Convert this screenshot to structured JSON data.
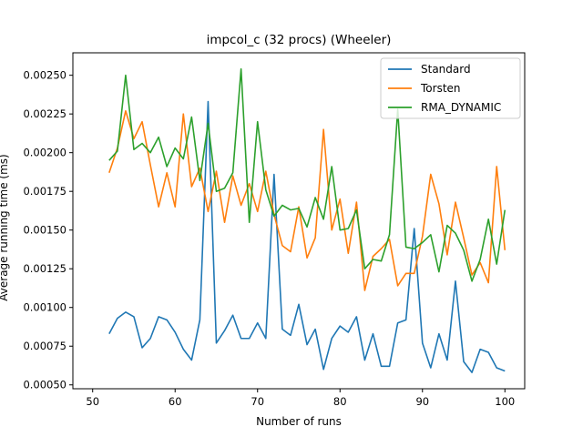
{
  "chart_data": {
    "type": "line",
    "title": "impcol_c (32 procs) (Wheeler)",
    "xlabel": "Number of runs",
    "ylabel": "Average running time (ms)",
    "xlim": [
      47.6,
      102.4
    ],
    "ylim": [
      0.000475,
      0.002645
    ],
    "xticks": [
      50,
      60,
      70,
      80,
      90,
      100
    ],
    "yticks": [
      0.0005,
      0.00075,
      0.001,
      0.00125,
      0.0015,
      0.00175,
      0.002,
      0.00225,
      0.0025
    ],
    "ytick_labels": [
      "0.00050",
      "0.00075",
      "0.00100",
      "0.00125",
      "0.00150",
      "0.00175",
      "0.00200",
      "0.00225",
      "0.00250"
    ],
    "xtick_labels": [
      "50",
      "60",
      "70",
      "80",
      "90",
      "100"
    ],
    "grid": false,
    "legend_position": "top-right",
    "x": [
      52,
      53,
      54,
      55,
      56,
      57,
      58,
      59,
      60,
      61,
      62,
      63,
      64,
      65,
      66,
      67,
      68,
      69,
      70,
      71,
      72,
      73,
      74,
      75,
      76,
      77,
      78,
      79,
      80,
      81,
      82,
      83,
      84,
      85,
      86,
      87,
      88,
      89,
      90,
      91,
      92,
      93,
      94,
      95,
      96,
      97,
      98,
      99,
      100
    ],
    "series": [
      {
        "name": "Standard",
        "color": "#1f77b4",
        "values": [
          0.00083,
          0.00093,
          0.00097,
          0.00094,
          0.00074,
          0.0008,
          0.00094,
          0.00092,
          0.00084,
          0.00073,
          0.00066,
          0.00092,
          0.00233,
          0.00077,
          0.00085,
          0.00095,
          0.0008,
          0.0008,
          0.0009,
          0.0008,
          0.00186,
          0.00086,
          0.00082,
          0.00102,
          0.00076,
          0.00086,
          0.0006,
          0.0008,
          0.00088,
          0.00084,
          0.00094,
          0.00066,
          0.00083,
          0.00062,
          0.00062,
          0.0009,
          0.00092,
          0.00151,
          0.00077,
          0.00061,
          0.00083,
          0.00066,
          0.00117,
          0.00065,
          0.00058,
          0.00073,
          0.00071,
          0.00061,
          0.00059
        ]
      },
      {
        "name": "Torsten",
        "color": "#ff7f0e",
        "values": [
          0.00187,
          0.00203,
          0.00227,
          0.00209,
          0.0022,
          0.00192,
          0.00165,
          0.00187,
          0.00165,
          0.00225,
          0.00178,
          0.0019,
          0.00162,
          0.00188,
          0.00155,
          0.00185,
          0.00166,
          0.0018,
          0.00162,
          0.00188,
          0.0016,
          0.0014,
          0.00136,
          0.00165,
          0.00132,
          0.00145,
          0.00215,
          0.0015,
          0.0017,
          0.00135,
          0.00168,
          0.00111,
          0.00133,
          0.00138,
          0.00144,
          0.00114,
          0.00122,
          0.00122,
          0.00146,
          0.00186,
          0.00167,
          0.00134,
          0.00168,
          0.00145,
          0.00121,
          0.00129,
          0.00116,
          0.00191,
          0.00137
        ]
      },
      {
        "name": "RMA_DYNAMIC",
        "color": "#2ca02c",
        "values": [
          0.00195,
          0.00201,
          0.0025,
          0.00202,
          0.00206,
          0.002,
          0.0021,
          0.00191,
          0.00203,
          0.00196,
          0.00223,
          0.00182,
          0.00219,
          0.00175,
          0.00177,
          0.00187,
          0.00254,
          0.00155,
          0.0022,
          0.00176,
          0.00159,
          0.00166,
          0.00163,
          0.00164,
          0.00152,
          0.00171,
          0.00157,
          0.00191,
          0.0015,
          0.00151,
          0.00163,
          0.00125,
          0.00131,
          0.0013,
          0.00147,
          0.00228,
          0.00139,
          0.00138,
          0.00142,
          0.00147,
          0.00123,
          0.00153,
          0.00148,
          0.00137,
          0.00117,
          0.00131,
          0.00157,
          0.00128,
          0.00163
        ]
      }
    ]
  }
}
